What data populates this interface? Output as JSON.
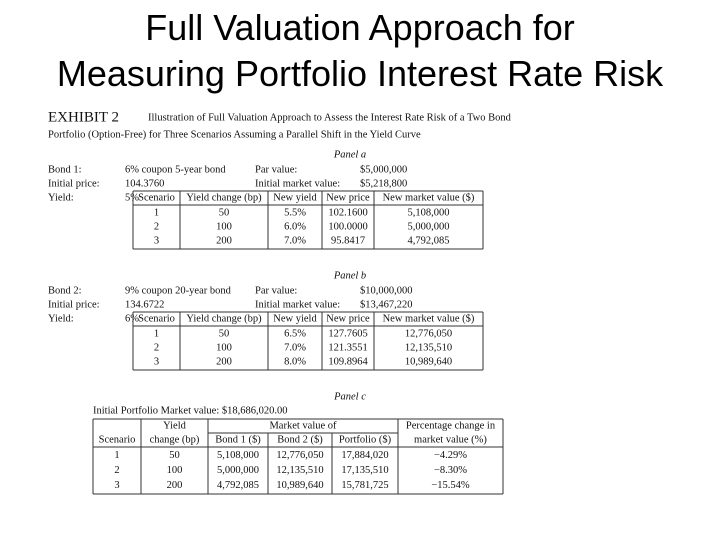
{
  "title": [
    "Full Valuation Approach for",
    "Measuring Portfolio Interest Rate Risk"
  ],
  "exhibit": {
    "label": "EXHIBIT 2",
    "caption": [
      "Illustration of Full Valuation Approach to Assess the Interest Rate Risk of a Two Bond",
      "Portfolio (Option-Free) for Three Scenarios Assuming a Parallel Shift in the Yield Curve"
    ]
  },
  "panel_a": {
    "label": "Panel a",
    "info": [
      [
        "Bond 1:",
        "6% coupon 5-year bond",
        "Par value:",
        "$5,000,000"
      ],
      [
        "Initial price:",
        "104.3760",
        "Initial market value:",
        "$5,218,800"
      ],
      [
        "Yield:",
        "5%"
      ]
    ],
    "table": {
      "header": [
        "Scenario",
        "Yield change (bp)",
        "New yield",
        "New price",
        "New market value ($)"
      ],
      "rows": [
        [
          "1",
          "50",
          "5.5%",
          "102.1600",
          "5,108,000"
        ],
        [
          "2",
          "100",
          "6.0%",
          "100.0000",
          "5,000,000"
        ],
        [
          "3",
          "200",
          "7.0%",
          "95.8417",
          "4,792,085"
        ]
      ]
    }
  },
  "panel_b": {
    "label": "Panel b",
    "info": [
      [
        "Bond 2:",
        "9% coupon 20-year bond",
        "Par value:",
        "$10,000,000"
      ],
      [
        "Initial price:",
        "134.6722",
        "Initial market value:",
        "$13,467,220"
      ],
      [
        "Yield:",
        "6%"
      ]
    ],
    "table": {
      "header": [
        "Scenario",
        "Yield change (bp)",
        "New yield",
        "New price",
        "New market value ($)"
      ],
      "rows": [
        [
          "1",
          "50",
          "6.5%",
          "127.7605",
          "12,776,050"
        ],
        [
          "2",
          "100",
          "7.0%",
          "121.3551",
          "12,135,510"
        ],
        [
          "3",
          "200",
          "8.0%",
          "109.8964",
          "10,989,640"
        ]
      ]
    }
  },
  "panel_c": {
    "label": "Panel c",
    "note": "Initial Portfolio Market value: $18,686,020.00",
    "table": {
      "header_top": [
        "Yield",
        "Market value of",
        "Percentage change in"
      ],
      "header": [
        "Scenario",
        "change (bp)",
        "Bond 1 ($)",
        "Bond 2 ($)",
        "Portfolio ($)",
        "market value (%)"
      ],
      "rows": [
        [
          "1",
          "50",
          "5,108,000",
          "12,776,050",
          "17,884,020",
          "−4.29%"
        ],
        [
          "2",
          "100",
          "5,000,000",
          "12,135,510",
          "17,135,510",
          "−8.30%"
        ],
        [
          "3",
          "200",
          "4,792,085",
          "10,989,640",
          "15,781,725",
          "−15.54%"
        ]
      ]
    }
  }
}
